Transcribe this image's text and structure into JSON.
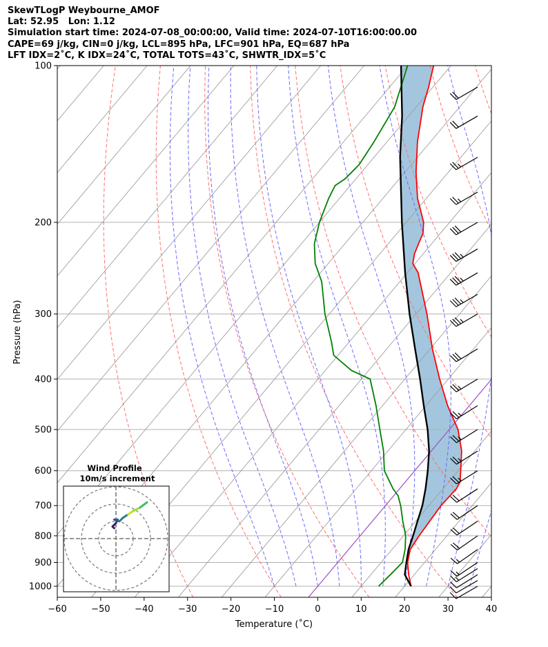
{
  "header": {
    "line1": "SkewTLogP Weybourne_AMOF",
    "line2": "Lat: 52.95   Lon: 1.12",
    "line3": "Simulation start time: 2024-07-08_00:00:00, Valid time: 2024-07-10T16:00:00.00",
    "line4": "CAPE=69 j/kg, CIN=0 j/kg, LCL=895 hPa, LFC=901 hPa, EQ=687 hPa",
    "line5": "LFT IDX=2˚C, K IDX=24˚C, TOTAL TOTS=43˚C, SHWTR_IDX=5˚C"
  },
  "chart_data": {
    "type": "skewt",
    "xlabel": "Temperature (˚C)",
    "ylabel": "Pressure (hPa)",
    "xlim": [
      -60,
      40
    ],
    "ylim": [
      1050,
      100
    ],
    "x_ticks": [
      -60,
      -50,
      -40,
      -30,
      -20,
      -10,
      0,
      10,
      20,
      30,
      40
    ],
    "x_tick_labels": [
      "−60",
      "−50",
      "−40",
      "−30",
      "−20",
      "−10",
      "0",
      "10",
      "20",
      "30",
      "40"
    ],
    "y_ticks": [
      1000,
      900,
      800,
      700,
      600,
      500,
      400,
      300,
      200,
      100
    ],
    "y_tick_labels": [
      "1000",
      "900",
      "800",
      "700",
      "600",
      "500",
      "400",
      "300",
      "200",
      "100"
    ],
    "colors": {
      "temperature": "#ff0000",
      "dewpoint": "#008000",
      "parcel": "#000000",
      "cape_fill": "#a3c6de",
      "dry_adiabat": "#ff7070",
      "moist_adiabat": "#6a6aff",
      "mixing_ratio": "#b7b7b7",
      "isotherm_zero": "#9a4fc7"
    },
    "series": [
      {
        "name": "Temperature",
        "points": [
          [
            1000,
            21.5
          ],
          [
            950,
            18.7
          ],
          [
            900,
            16.1
          ],
          [
            850,
            14.2
          ],
          [
            800,
            13.6
          ],
          [
            700,
            12.8
          ],
          [
            650,
            13.1
          ],
          [
            630,
            12.6
          ],
          [
            550,
            7.0
          ],
          [
            500,
            2.0
          ],
          [
            450,
            -5.0
          ],
          [
            400,
            -12.0
          ],
          [
            350,
            -19.5
          ],
          [
            300,
            -27.5
          ],
          [
            250,
            -37.5
          ],
          [
            240,
            -40.5
          ],
          [
            230,
            -42.0
          ],
          [
            220,
            -43.0
          ],
          [
            210,
            -44.0
          ],
          [
            200,
            -46.0
          ],
          [
            180,
            -52.0
          ],
          [
            160,
            -57.5
          ],
          [
            140,
            -63.0
          ],
          [
            120,
            -68.5
          ],
          [
            110,
            -71.0
          ],
          [
            100,
            -74.0
          ]
        ]
      },
      {
        "name": "Dewpoint",
        "points": [
          [
            1000,
            14.0
          ],
          [
            950,
            14.5
          ],
          [
            900,
            14.9
          ],
          [
            850,
            13.0
          ],
          [
            800,
            10.5
          ],
          [
            750,
            7.0
          ],
          [
            700,
            3.5
          ],
          [
            670,
            1.0
          ],
          [
            650,
            -1.5
          ],
          [
            600,
            -7.0
          ],
          [
            550,
            -11.0
          ],
          [
            500,
            -16.0
          ],
          [
            450,
            -21.5
          ],
          [
            400,
            -28.0
          ],
          [
            385,
            -34.0
          ],
          [
            360,
            -41.0
          ],
          [
            340,
            -44.0
          ],
          [
            300,
            -51.0
          ],
          [
            260,
            -58.0
          ],
          [
            240,
            -63.0
          ],
          [
            220,
            -67.0
          ],
          [
            200,
            -70.0
          ],
          [
            180,
            -72.5
          ],
          [
            170,
            -73.5
          ],
          [
            165,
            -72.5
          ],
          [
            155,
            -72.0
          ],
          [
            140,
            -73.0
          ],
          [
            120,
            -75.0
          ],
          [
            100,
            -80.0
          ]
        ]
      },
      {
        "name": "Parcel",
        "points": [
          [
            1000,
            21.5
          ],
          [
            950,
            17.8
          ],
          [
            900,
            15.8
          ],
          [
            850,
            13.8
          ],
          [
            800,
            12.2
          ],
          [
            750,
            10.4
          ],
          [
            700,
            8.5
          ],
          [
            650,
            6.0
          ],
          [
            600,
            3.0
          ],
          [
            550,
            -0.5
          ],
          [
            500,
            -5.0
          ],
          [
            450,
            -10.5
          ],
          [
            400,
            -16.5
          ],
          [
            350,
            -23.5
          ],
          [
            300,
            -31.5
          ],
          [
            250,
            -40.5
          ],
          [
            200,
            -51.0
          ],
          [
            150,
            -64.0
          ],
          [
            125,
            -71.5
          ],
          [
            100,
            -81.5
          ]
        ]
      }
    ],
    "inset": {
      "title_line1": "Wind Profile",
      "title_line2": "10m/s increment",
      "rings": [
        10,
        20,
        30
      ],
      "hodograph_uv": [
        [
          -1,
          6
        ],
        [
          -2,
          7
        ],
        [
          0,
          9
        ],
        [
          1,
          11
        ],
        [
          -1,
          11
        ],
        [
          2,
          10
        ],
        [
          4,
          12
        ],
        [
          7,
          14
        ],
        [
          10,
          16
        ],
        [
          14,
          18
        ],
        [
          18,
          21
        ]
      ]
    },
    "wind_barbs": {
      "pressures": [
        1000,
        975,
        950,
        925,
        900,
        850,
        800,
        750,
        700,
        650,
        600,
        550,
        500,
        450,
        400,
        350,
        300,
        275,
        250,
        225,
        200,
        175,
        150,
        125,
        110
      ],
      "direction_deg": [
        240,
        240,
        238,
        238,
        236,
        235,
        235,
        236,
        236,
        237,
        238,
        238,
        238,
        238,
        239,
        239,
        240,
        240,
        240,
        240,
        240,
        240,
        240,
        240,
        240
      ],
      "speed_kt": [
        10,
        10,
        10,
        15,
        15,
        15,
        20,
        20,
        20,
        20,
        25,
        25,
        25,
        25,
        25,
        30,
        35,
        35,
        35,
        35,
        30,
        25,
        25,
        20,
        20
      ]
    }
  }
}
